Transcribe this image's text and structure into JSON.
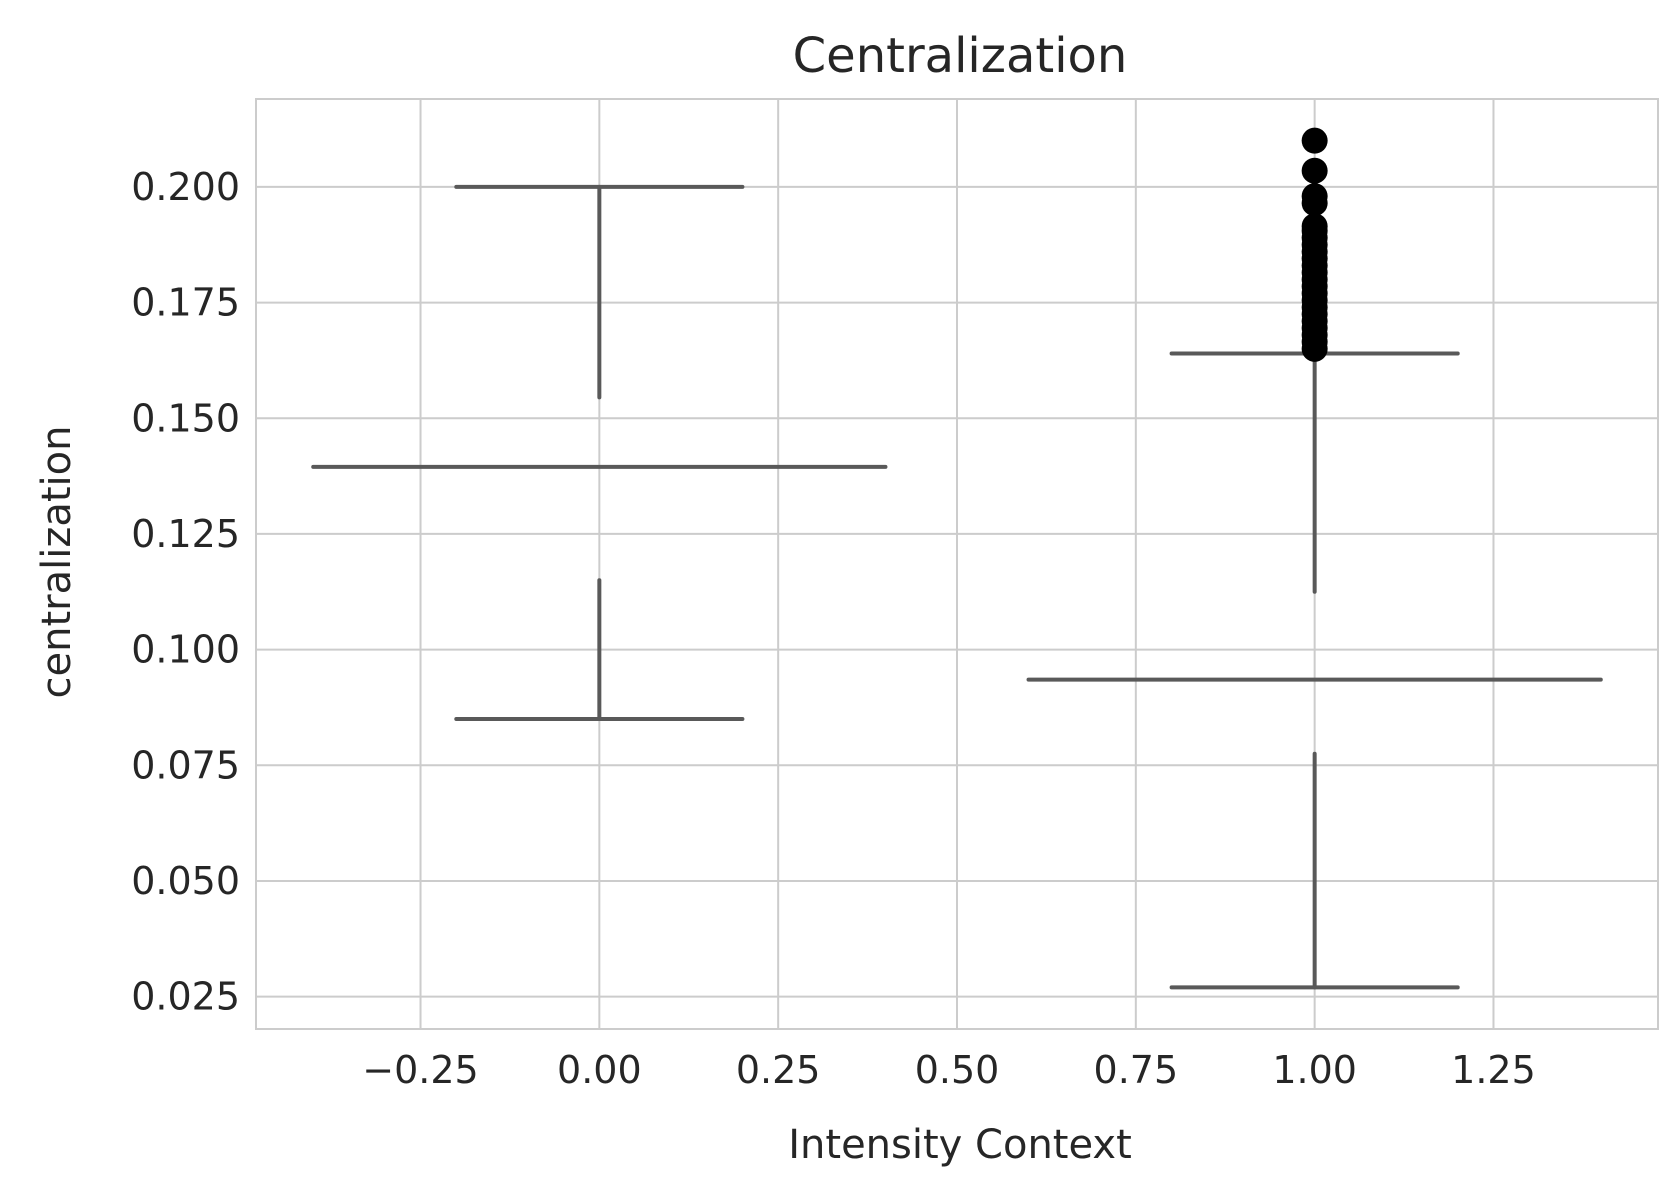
{
  "chart_data": {
    "type": "boxplot",
    "title": "Centralization",
    "xlabel": "Intensity Context",
    "ylabel": "centralization",
    "xlim": [
      -0.48,
      1.48
    ],
    "ylim": [
      0.018,
      0.219
    ],
    "x_ticks": [
      -0.25,
      0.0,
      0.25,
      0.5,
      0.75,
      1.0,
      1.25
    ],
    "x_tick_labels": [
      "−0.25",
      "0.00",
      "0.25",
      "0.50",
      "0.75",
      "1.00",
      "1.25"
    ],
    "y_ticks": [
      0.025,
      0.05,
      0.075,
      0.1,
      0.125,
      0.15,
      0.175,
      0.2
    ],
    "y_tick_labels": [
      "0.025",
      "0.050",
      "0.075",
      "0.100",
      "0.125",
      "0.150",
      "0.175",
      "0.200"
    ],
    "grid": true,
    "colors": {
      "line": "#595959",
      "outlier": "#000000",
      "grid": "#cccccc",
      "frame": "#cccccc"
    },
    "groups": [
      {
        "position": 0,
        "whisker_low": 0.085,
        "whisker_high": 0.2,
        "median": 0.1395,
        "q1": 0.115,
        "q3": 0.1545,
        "cap_halfwidth": 0.2,
        "median_halfwidth": 0.4,
        "outliers": []
      },
      {
        "position": 1,
        "whisker_low": 0.027,
        "whisker_high": 0.164,
        "median": 0.0935,
        "q1": 0.0775,
        "q3": 0.1125,
        "cap_halfwidth": 0.2,
        "median_halfwidth": 0.4,
        "outliers": [
          0.21,
          0.2035,
          0.198,
          0.1965,
          0.1915,
          0.1905,
          0.189,
          0.1875,
          0.186,
          0.1845,
          0.183,
          0.1815,
          0.18,
          0.1785,
          0.177,
          0.1755,
          0.174,
          0.1725,
          0.171,
          0.1695,
          0.168,
          0.1665,
          0.165
        ]
      }
    ]
  }
}
